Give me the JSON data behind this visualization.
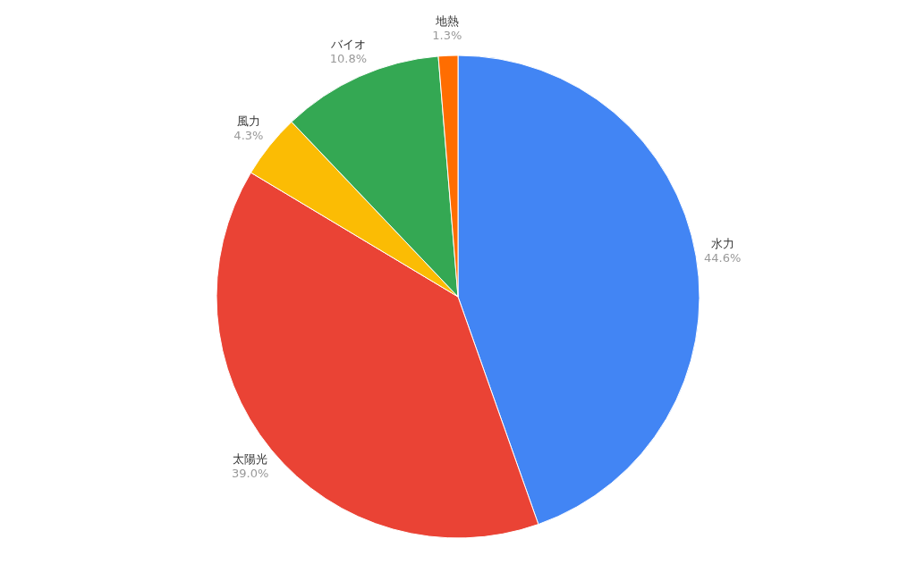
{
  "chart_data": {
    "type": "pie",
    "categories": [
      "水力",
      "太陽光",
      "風力",
      "バイオ",
      "地熱"
    ],
    "values": [
      44.6,
      39.0,
      4.3,
      10.8,
      1.3
    ],
    "value_labels": [
      "44.6%",
      "39.0%",
      "4.3%",
      "10.8%",
      "1.3%"
    ],
    "colors": [
      "#4285f4",
      "#ea4335",
      "#fbbc04",
      "#34a853",
      "#ff6d01"
    ]
  }
}
